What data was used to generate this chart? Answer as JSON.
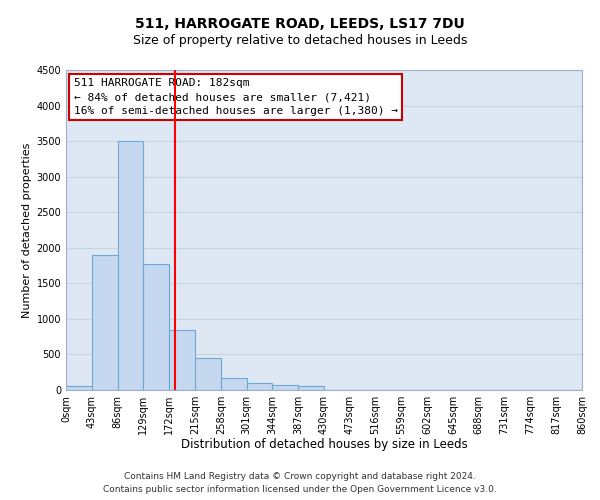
{
  "title": "511, HARROGATE ROAD, LEEDS, LS17 7DU",
  "subtitle": "Size of property relative to detached houses in Leeds",
  "xlabel": "Distribution of detached houses by size in Leeds",
  "ylabel": "Number of detached properties",
  "bin_edges": [
    0,
    43,
    86,
    129,
    172,
    215,
    258,
    301,
    344,
    387,
    430,
    473,
    516,
    559,
    602,
    645,
    688,
    731,
    774,
    817,
    860
  ],
  "bar_heights": [
    50,
    1900,
    3500,
    1775,
    850,
    450,
    175,
    100,
    75,
    50,
    0,
    0,
    0,
    0,
    0,
    0,
    0,
    0,
    0,
    0
  ],
  "bar_color": "#c5d8ef",
  "bar_edge_color": "#6aaad4",
  "bar_edge_width": 0.8,
  "red_line_x": 182,
  "ylim": [
    0,
    4500
  ],
  "yticks": [
    0,
    500,
    1000,
    1500,
    2000,
    2500,
    3000,
    3500,
    4000,
    4500
  ],
  "annotation_title": "511 HARROGATE ROAD: 182sqm",
  "annotation_line1": "← 84% of detached houses are smaller (7,421)",
  "annotation_line2": "16% of semi-detached houses are larger (1,380) →",
  "annotation_box_color": "#ffffff",
  "annotation_box_edge_color": "#cc0000",
  "grid_color": "#c8d4e0",
  "background_color": "#dde8f4",
  "footer_line1": "Contains HM Land Registry data © Crown copyright and database right 2024.",
  "footer_line2": "Contains public sector information licensed under the Open Government Licence v3.0.",
  "tick_labels": [
    "0sqm",
    "43sqm",
    "86sqm",
    "129sqm",
    "172sqm",
    "215sqm",
    "258sqm",
    "301sqm",
    "344sqm",
    "387sqm",
    "430sqm",
    "473sqm",
    "516sqm",
    "559sqm",
    "602sqm",
    "645sqm",
    "688sqm",
    "731sqm",
    "774sqm",
    "817sqm",
    "860sqm"
  ],
  "title_fontsize": 10,
  "subtitle_fontsize": 9,
  "xlabel_fontsize": 8.5,
  "ylabel_fontsize": 8,
  "tick_fontsize": 7,
  "annotation_fontsize": 8,
  "footer_fontsize": 6.5
}
